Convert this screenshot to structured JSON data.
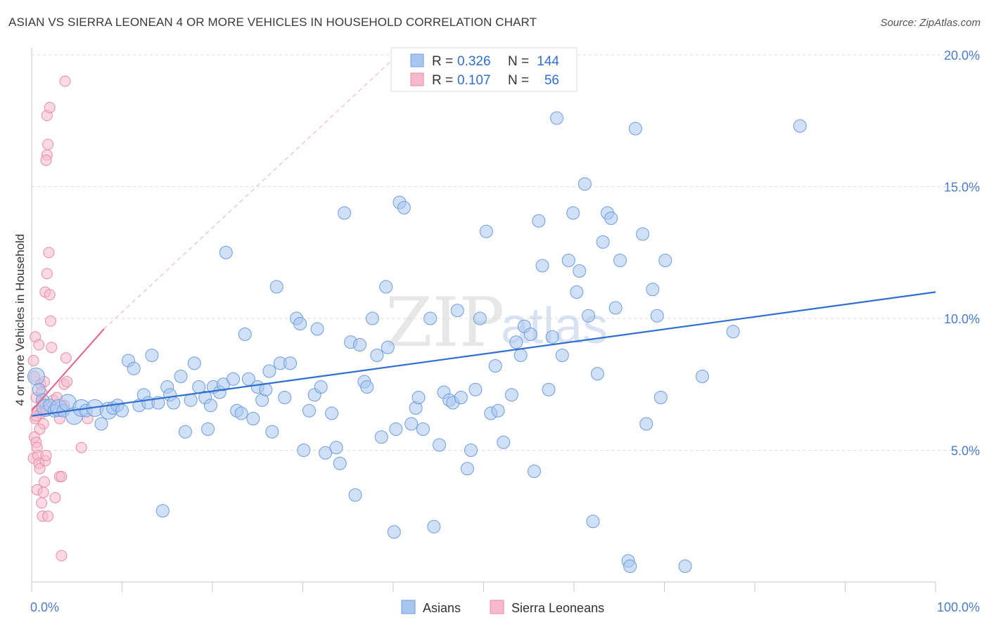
{
  "header": {
    "title": "ASIAN VS SIERRA LEONEAN 4 OR MORE VEHICLES IN HOUSEHOLD CORRELATION CHART",
    "source": "Source: ZipAtlas.com"
  },
  "watermark": {
    "zip": "ZIP",
    "atlas": "atlas"
  },
  "legend_top": {
    "rows": [
      {
        "r_label": "R =",
        "r_value": "0.326",
        "n_label": "N =",
        "n_value": "144"
      },
      {
        "r_label": "R =",
        "r_value": "0.107",
        "n_label": "N =",
        "n_value": "56"
      }
    ]
  },
  "legend_bottom": {
    "items": [
      "Asians",
      "Sierra Leoneans"
    ]
  },
  "colors": {
    "asian_fill": "#a9c6f0",
    "asian_stroke": "#6f9de0",
    "asian_line": "#2f6fcf",
    "sl_fill": "#f7b9cc",
    "sl_stroke": "#e98aa6",
    "sl_line": "#e06a90",
    "tick_text": "#4a7cc9",
    "grid": "#dddddd"
  },
  "chart_data": {
    "type": "scatter",
    "title": "ASIAN VS SIERRA LEONEAN 4 OR MORE VEHICLES IN HOUSEHOLD CORRELATION CHART",
    "xlabel": "",
    "ylabel": "4 or more Vehicles in Household",
    "x_unit": "percent",
    "y_unit": "percent",
    "xlim": [
      0,
      100
    ],
    "ylim": [
      0,
      20
    ],
    "x_tick_labels": [
      "0.0%",
      "100.0%"
    ],
    "y_ticks": [
      5,
      10,
      15,
      20
    ],
    "y_tick_labels": [
      "5.0%",
      "10.0%",
      "15.0%",
      "20.0%"
    ],
    "grid": "horizontal dashed",
    "legend_position": "top-center",
    "series": [
      {
        "name": "Asians",
        "R": 0.326,
        "N": 144,
        "trend": {
          "x": [
            0,
            100
          ],
          "y": [
            6.3,
            11.0
          ]
        },
        "points": [
          [
            0.5,
            7.8
          ],
          [
            0.8,
            7.3
          ],
          [
            1.2,
            6.9
          ],
          [
            1.5,
            6.6
          ],
          [
            2,
            6.7
          ],
          [
            2.5,
            6.5
          ],
          [
            3,
            6.6
          ],
          [
            3.5,
            6.5
          ],
          [
            4,
            6.8
          ],
          [
            4.7,
            6.3
          ],
          [
            5.5,
            6.6
          ],
          [
            6,
            6.5
          ],
          [
            7,
            6.6
          ],
          [
            7.7,
            6.0
          ],
          [
            8.5,
            6.5
          ],
          [
            9,
            6.6
          ],
          [
            9.5,
            6.7
          ],
          [
            10,
            6.5
          ],
          [
            10.7,
            8.4
          ],
          [
            11.3,
            8.1
          ],
          [
            11.9,
            6.7
          ],
          [
            12.4,
            7.1
          ],
          [
            12.9,
            6.8
          ],
          [
            13.3,
            8.6
          ],
          [
            14,
            6.8
          ],
          [
            14.5,
            2.7
          ],
          [
            15,
            7.4
          ],
          [
            15.3,
            7.1
          ],
          [
            15.7,
            6.8
          ],
          [
            16.5,
            7.8
          ],
          [
            17,
            5.7
          ],
          [
            17.6,
            6.9
          ],
          [
            18,
            8.3
          ],
          [
            18.5,
            7.4
          ],
          [
            19.2,
            7.0
          ],
          [
            19.5,
            5.8
          ],
          [
            19.8,
            6.7
          ],
          [
            20.1,
            7.4
          ],
          [
            20.8,
            7.2
          ],
          [
            21.2,
            7.5
          ],
          [
            21.5,
            12.5
          ],
          [
            22.3,
            7.7
          ],
          [
            22.7,
            6.5
          ],
          [
            23.2,
            6.4
          ],
          [
            23.6,
            9.4
          ],
          [
            24,
            7.7
          ],
          [
            24.5,
            6.2
          ],
          [
            25,
            7.4
          ],
          [
            25.5,
            6.9
          ],
          [
            25.9,
            7.3
          ],
          [
            26.3,
            8.0
          ],
          [
            26.6,
            5.7
          ],
          [
            27.1,
            11.2
          ],
          [
            27.5,
            8.3
          ],
          [
            28,
            7.0
          ],
          [
            28.6,
            8.3
          ],
          [
            29.3,
            10.0
          ],
          [
            29.7,
            9.8
          ],
          [
            30.1,
            5.0
          ],
          [
            30.7,
            6.5
          ],
          [
            31.3,
            7.1
          ],
          [
            31.6,
            9.6
          ],
          [
            32,
            7.4
          ],
          [
            32.5,
            4.9
          ],
          [
            33.2,
            6.4
          ],
          [
            33.7,
            5.1
          ],
          [
            34.1,
            4.5
          ],
          [
            34.6,
            14.0
          ],
          [
            35.3,
            9.1
          ],
          [
            35.8,
            3.3
          ],
          [
            36.3,
            9.0
          ],
          [
            36.8,
            7.6
          ],
          [
            37.1,
            7.4
          ],
          [
            37.7,
            10.0
          ],
          [
            38.2,
            8.6
          ],
          [
            38.7,
            5.5
          ],
          [
            39.2,
            11.2
          ],
          [
            39.4,
            8.9
          ],
          [
            40.1,
            1.9
          ],
          [
            40.3,
            5.8
          ],
          [
            40.7,
            14.4
          ],
          [
            41.2,
            14.2
          ],
          [
            42,
            6.0
          ],
          [
            42.5,
            6.6
          ],
          [
            42.8,
            7.0
          ],
          [
            43.3,
            5.8
          ],
          [
            44.1,
            10.0
          ],
          [
            44.5,
            2.1
          ],
          [
            45.1,
            5.2
          ],
          [
            45.6,
            7.2
          ],
          [
            46.2,
            6.9
          ],
          [
            46.6,
            6.8
          ],
          [
            47.1,
            10.3
          ],
          [
            47.5,
            7.0
          ],
          [
            48.2,
            4.3
          ],
          [
            48.6,
            5.0
          ],
          [
            49.1,
            7.3
          ],
          [
            49.6,
            10.0
          ],
          [
            50.3,
            13.3
          ],
          [
            50.8,
            6.4
          ],
          [
            51.3,
            8.2
          ],
          [
            51.6,
            6.5
          ],
          [
            52.2,
            5.3
          ],
          [
            53.1,
            7.1
          ],
          [
            53.6,
            9.1
          ],
          [
            54.1,
            8.6
          ],
          [
            54.5,
            9.7
          ],
          [
            55.2,
            9.4
          ],
          [
            55.6,
            4.2
          ],
          [
            56.1,
            13.7
          ],
          [
            56.5,
            12.0
          ],
          [
            57.2,
            7.3
          ],
          [
            57.6,
            9.3
          ],
          [
            58.1,
            17.6
          ],
          [
            58.7,
            8.6
          ],
          [
            59.4,
            12.2
          ],
          [
            59.9,
            14.0
          ],
          [
            60.3,
            11.0
          ],
          [
            60.6,
            11.8
          ],
          [
            61.2,
            15.1
          ],
          [
            61.6,
            10.1
          ],
          [
            62.1,
            2.3
          ],
          [
            62.6,
            7.9
          ],
          [
            63.2,
            12.9
          ],
          [
            63.7,
            14.0
          ],
          [
            64.1,
            13.8
          ],
          [
            64.6,
            10.4
          ],
          [
            65.1,
            12.2
          ],
          [
            66,
            0.8
          ],
          [
            66.2,
            0.6
          ],
          [
            66.8,
            17.2
          ],
          [
            67.6,
            13.2
          ],
          [
            68,
            6.0
          ],
          [
            68.7,
            11.1
          ],
          [
            69.2,
            10.1
          ],
          [
            69.6,
            7.0
          ],
          [
            70.1,
            12.2
          ],
          [
            72.3,
            0.6
          ],
          [
            74.2,
            7.8
          ],
          [
            77.6,
            9.5
          ],
          [
            85,
            17.3
          ]
        ],
        "sizes_large": [
          [
            0.5,
            7.8
          ],
          [
            1.5,
            6.6
          ],
          [
            3,
            6.6
          ],
          [
            4.7,
            6.3
          ],
          [
            5.5,
            6.6
          ],
          [
            7,
            6.6
          ],
          [
            8.5,
            6.5
          ],
          [
            4,
            6.8
          ]
        ]
      },
      {
        "name": "Sierra Leoneans",
        "R": 0.107,
        "N": 56,
        "trend": {
          "x": [
            0,
            8
          ],
          "y": [
            6.5,
            9.6
          ]
        },
        "trend_extension": {
          "x": [
            8,
            40.5
          ],
          "y": [
            9.6,
            20.0
          ]
        },
        "points": [
          [
            0.2,
            8.4
          ],
          [
            0.3,
            7.8
          ],
          [
            0.4,
            9.3
          ],
          [
            0.5,
            7.0
          ],
          [
            0.6,
            6.5
          ],
          [
            0.4,
            6.2
          ],
          [
            0.3,
            5.5
          ],
          [
            0.5,
            5.3
          ],
          [
            0.6,
            5.1
          ],
          [
            0.2,
            4.7
          ],
          [
            0.7,
            4.8
          ],
          [
            0.8,
            4.5
          ],
          [
            0.9,
            4.3
          ],
          [
            0.6,
            3.5
          ],
          [
            0.8,
            9.0
          ],
          [
            1.0,
            7.5
          ],
          [
            1.1,
            7.2
          ],
          [
            1.2,
            6.8
          ],
          [
            1.0,
            6.4
          ],
          [
            1.3,
            6.0
          ],
          [
            1.5,
            4.6
          ],
          [
            1.6,
            4.8
          ],
          [
            1.4,
            3.8
          ],
          [
            1.3,
            3.4
          ],
          [
            1.2,
            2.5
          ],
          [
            1.8,
            2.5
          ],
          [
            1.5,
            11.0
          ],
          [
            1.7,
            11.7
          ],
          [
            1.9,
            12.5
          ],
          [
            2.0,
            10.9
          ],
          [
            2.1,
            9.9
          ],
          [
            2.2,
            8.9
          ],
          [
            1.7,
            17.7
          ],
          [
            2.0,
            18.0
          ],
          [
            1.8,
            16.6
          ],
          [
            1.7,
            16.2
          ],
          [
            1.6,
            16.0
          ],
          [
            1.4,
            7.6
          ],
          [
            1.6,
            6.5
          ],
          [
            2.4,
            6.9
          ],
          [
            2.8,
            7.0
          ],
          [
            3.1,
            6.2
          ],
          [
            3.1,
            4.0
          ],
          [
            3.3,
            4.0
          ],
          [
            3.3,
            1.0
          ],
          [
            3.6,
            6.7
          ],
          [
            3.6,
            7.5
          ],
          [
            3.8,
            8.5
          ],
          [
            3.9,
            7.6
          ],
          [
            3.7,
            19.0
          ],
          [
            5.5,
            5.1
          ],
          [
            6.2,
            6.2
          ],
          [
            0.5,
            6.3
          ],
          [
            0.9,
            5.8
          ],
          [
            1.1,
            3.0
          ],
          [
            2.6,
            3.2
          ]
        ]
      }
    ]
  }
}
